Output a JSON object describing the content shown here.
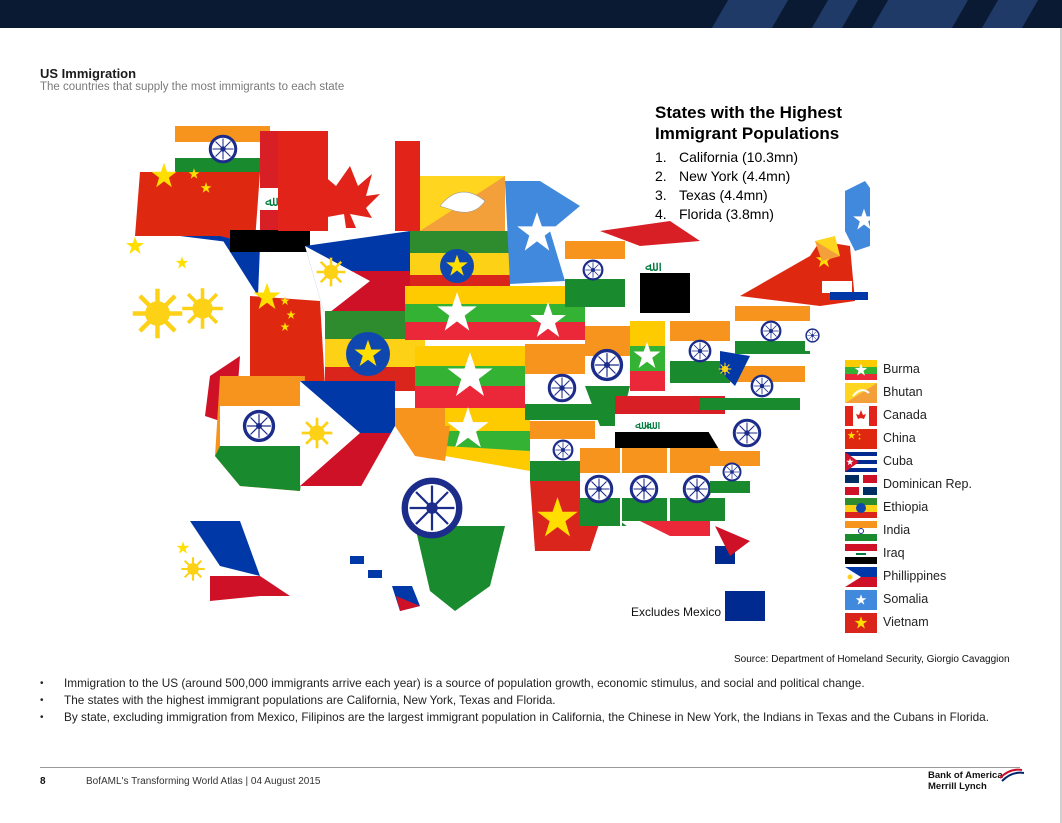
{
  "header": {
    "title": "US Immigration",
    "subtitle": "The countries that supply the most immigrants to each state"
  },
  "highest": {
    "title_line1": "States with the Highest",
    "title_line2": "Immigrant Populations",
    "items": [
      {
        "num": "1.",
        "label": "California (10.3mn)"
      },
      {
        "num": "2.",
        "label": "New York (4.4mn)"
      },
      {
        "num": "3.",
        "label": "Texas (4.4mn)"
      },
      {
        "num": "4.",
        "label": "Florida (3.8mn)"
      }
    ]
  },
  "map_note": "Excludes Mexico",
  "legend": [
    {
      "key": "burma",
      "label": "Burma"
    },
    {
      "key": "bhutan",
      "label": "Bhutan"
    },
    {
      "key": "canada",
      "label": "Canada"
    },
    {
      "key": "china",
      "label": "China"
    },
    {
      "key": "cuba",
      "label": "Cuba"
    },
    {
      "key": "dominican",
      "label": "Dominican Rep."
    },
    {
      "key": "ethiopia",
      "label": "Ethiopia"
    },
    {
      "key": "india",
      "label": "India"
    },
    {
      "key": "iraq",
      "label": "Iraq"
    },
    {
      "key": "philippines",
      "label": "Phillippines"
    },
    {
      "key": "somalia",
      "label": "Somalia"
    },
    {
      "key": "vietnam",
      "label": "Vietnam"
    }
  ],
  "source": "Source: Department of Homeland Security, Giorgio Cavaggion",
  "bullets": [
    "Immigration to the US (around 500,000 immigrants arrive each year) is a source of population growth, economic stimulus, and social and political change.",
    "The states with the highest immigrant populations are California, New York, Texas and Florida.",
    "By state, excluding immigration from Mexico, Filipinos are the largest immigrant population in California, the Chinese in New York, the Indians in Texas and the Cubans in Florida."
  ],
  "footer": {
    "page_number": "8",
    "text": "BofAML's Transforming World Atlas | 04 August 2015",
    "logo_line1": "Bank of America",
    "logo_line2": "Merrill Lynch"
  },
  "colors": {
    "top_bar": "#0b1a33",
    "india_saffron": "#f7941d",
    "india_green": "#1a8a2e",
    "india_chakra": "#1c2c8a",
    "burma_yellow": "#fecb00",
    "burma_green": "#34b233",
    "burma_red": "#ea2839",
    "canada_red": "#e2231a",
    "china_red": "#de2910",
    "china_yellow": "#ffde00",
    "cuba_blue": "#002a8f",
    "ethiopia_blue": "#0f47af",
    "somalia_blue": "#4189dd",
    "philippines_blue": "#0038a8",
    "philippines_red": "#ce1126",
    "iraq_green": "#007a3d",
    "vietnam_red": "#da251d",
    "bhutan_yellow": "#ffd520",
    "bhutan_orange": "#f4a03a"
  }
}
